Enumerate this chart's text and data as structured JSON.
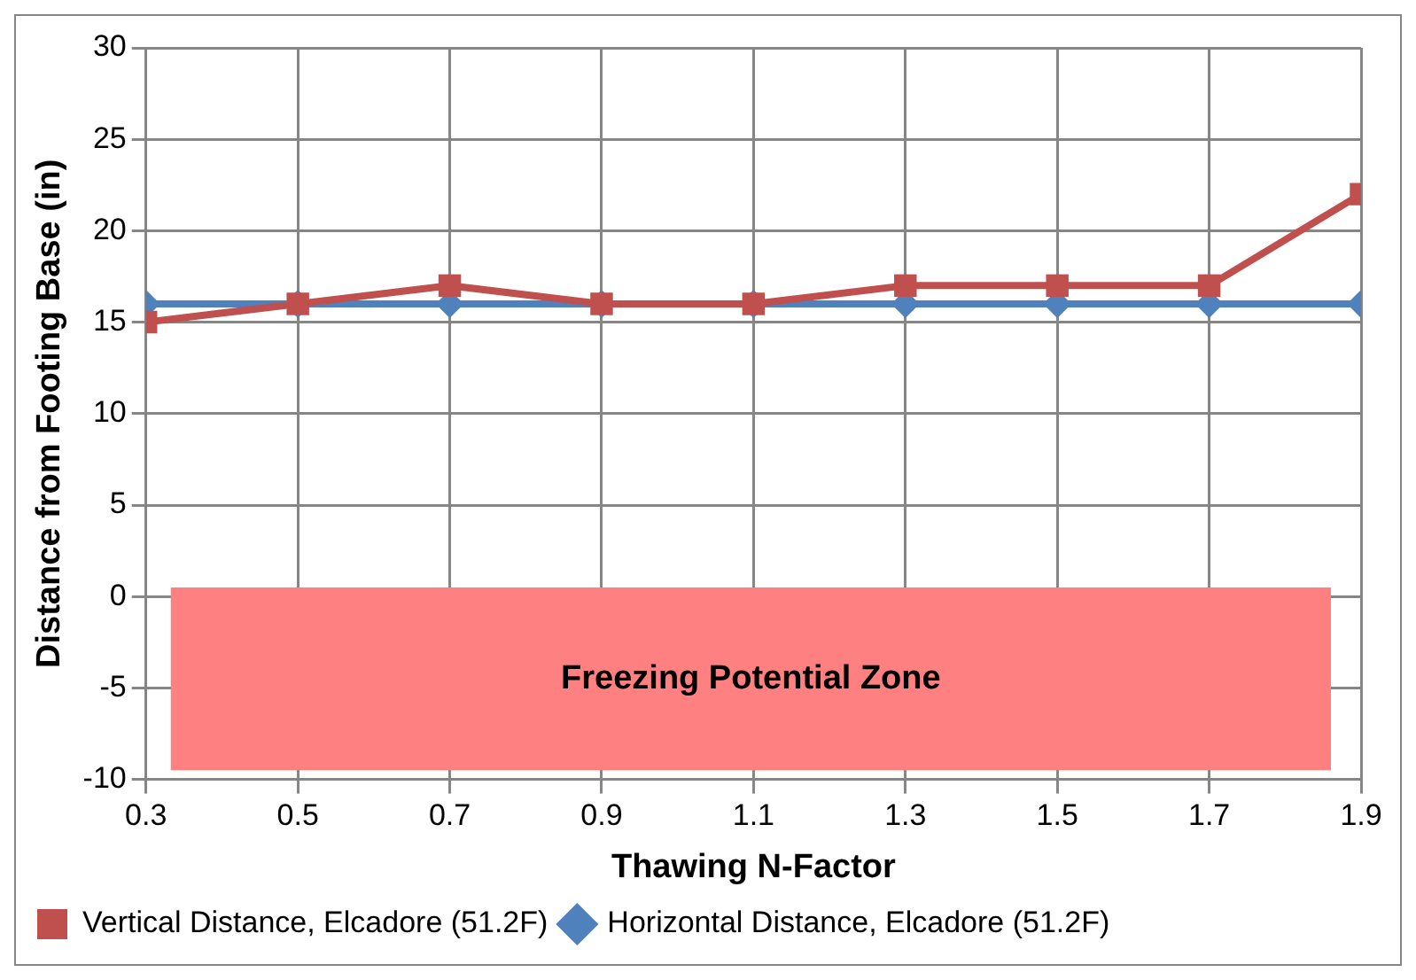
{
  "chart_data": {
    "type": "line",
    "xlabel": "Thawing N-Factor",
    "ylabel": "Distance from Footing Base (in)",
    "x": [
      0.3,
      0.5,
      0.7,
      0.9,
      1.1,
      1.3,
      1.5,
      1.7,
      1.9
    ],
    "series": [
      {
        "name": "Horizontal Distance, Elcadore (51.2F)",
        "color": "#4f81bd",
        "marker": "diamond",
        "values": [
          16,
          16,
          16,
          16,
          16,
          16,
          16,
          16,
          16
        ]
      },
      {
        "name": "Vertical Distance, Elcadore (51.2F)",
        "color": "#c0504d",
        "marker": "square",
        "values": [
          15,
          16,
          17,
          16,
          16,
          17,
          17,
          17,
          22
        ]
      }
    ],
    "xlim": [
      0.3,
      1.9
    ],
    "xticks": [
      0.3,
      0.5,
      0.7,
      0.9,
      1.1,
      1.3,
      1.5,
      1.7,
      1.9
    ],
    "ylim": [
      -10,
      30
    ],
    "yticks": [
      -10,
      -5,
      0,
      5,
      10,
      15,
      20,
      25,
      30
    ],
    "bands": [
      {
        "axis": "y",
        "from": -9.5,
        "to": 0.5,
        "label": "Freezing Potential Zone",
        "color": "#ff8080"
      }
    ],
    "grid": true,
    "legend": "bottom",
    "line_style": "solid"
  }
}
